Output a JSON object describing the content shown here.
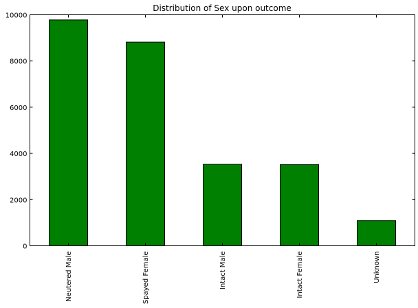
{
  "chart_data": {
    "type": "bar",
    "title": "Distribution of Sex upon outcome",
    "xlabel": "",
    "ylabel": "",
    "categories": [
      "Neutered Male",
      "Spayed Female",
      "Intact Male",
      "Intact Female",
      "Unknown"
    ],
    "values": [
      9779,
      8819,
      3525,
      3511,
      1093
    ],
    "ylim": [
      0,
      10000
    ],
    "yticks": [
      0,
      2000,
      4000,
      6000,
      8000,
      10000
    ],
    "bar_color": "#008000",
    "edge_color": "#000000",
    "grid": false,
    "legend": "none"
  }
}
